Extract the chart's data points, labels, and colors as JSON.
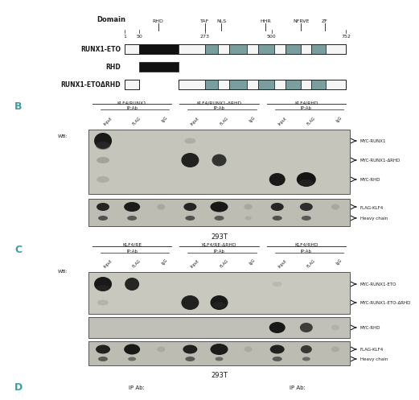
{
  "teal": "#3a9ea5",
  "black": "#1a1a1a",
  "blot_bg_light": "#c8c8be",
  "blot_bg_dark": "#b0b0a5",
  "grey_domain": "#7a9e9e",
  "white_seg": "#f5f5f5",
  "black_seg": "#111111",
  "protein_labels": [
    "RUNX1-ETO",
    "RHD",
    "RUNX1-ETOΔRHD"
  ],
  "domain_names": [
    "RHD",
    "TAF",
    "NLS",
    "HHR",
    "NFRVE",
    "ZF"
  ],
  "tick_labels": [
    "1",
    "50",
    "273",
    "500",
    "752"
  ],
  "group_B_labels": [
    "KLF4/RUNX1",
    "KLF4/RUNX1-ΔRHD",
    "KLF4/RHD"
  ],
  "group_C_labels": [
    "KLF4/RE",
    "KLF4/RE-ΔRHD",
    "KLF4/RHD"
  ],
  "col_labels": [
    "Input",
    "FLAG",
    "IgG"
  ],
  "arrow_labels_B_top": [
    "MYC-RUNX1",
    "MYC-RUNX1-ΔRHD",
    "MYC-RHD"
  ],
  "arrow_labels_B_bot": [
    "FLAG-KLF4",
    "Heavy chain"
  ],
  "arrow_labels_C1": [
    "MYC-RUNX1-ETO",
    "MYC-RUNX1-ETO-ΔRHD"
  ],
  "arrow_labels_C2": [
    "MYC-RHD"
  ],
  "arrow_labels_C3": [
    "FLAG-KLF4",
    "Heavy chain"
  ],
  "cell_line": "293T",
  "section_D_text": [
    "IP Ab:",
    "IP Ab:"
  ]
}
